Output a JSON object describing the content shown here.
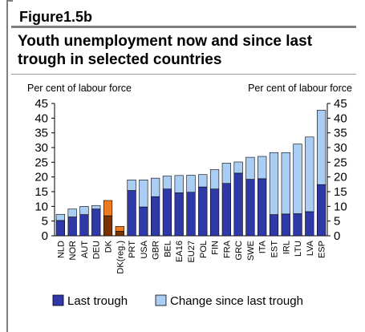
{
  "figure_label": "Figure1.5b",
  "title": "Youth unemployment now and since last trough in selected countries",
  "colors": {
    "last_trough": "#2f3aa8",
    "change": "#aacdf4",
    "highlight_trough": "#7a3200",
    "highlight_change": "#f07a1e",
    "rule": "#7f7f7f"
  },
  "chart_data": {
    "type": "bar",
    "stacked": true,
    "ylabel_left": "Per cent of labour force",
    "ylabel_right": "Per cent of labour force",
    "ylim": [
      0,
      45
    ],
    "yticks": [
      0,
      5,
      10,
      15,
      20,
      25,
      30,
      35,
      40,
      45
    ],
    "grid": false,
    "legend_position": "bottom",
    "categories": [
      "NLD",
      "NOR",
      "AUT",
      "DEU",
      "DK",
      "DK(reg.)",
      "PRT",
      "USA",
      "GBR",
      "BEL",
      "EA16",
      "EU27",
      "POL",
      "FIN",
      "FRA",
      "GRC",
      "SWE",
      "ITA",
      "EST",
      "IRL",
      "LTU",
      "LVA",
      "ESP"
    ],
    "highlighted_categories": [
      "DK",
      "DK(reg.)"
    ],
    "series": [
      {
        "name": "Last trough",
        "values": [
          5.2,
          6.4,
          7.2,
          9.1,
          6.8,
          1.5,
          15.4,
          9.8,
          13.3,
          15.9,
          14.6,
          14.8,
          16.6,
          15.9,
          17.8,
          21.3,
          19.2,
          19.4,
          7.2,
          7.4,
          7.5,
          8.2,
          17.4
        ]
      },
      {
        "name": "Change since last trough",
        "values": [
          2.1,
          2.7,
          2.8,
          1.2,
          5.2,
          1.7,
          3.6,
          9.2,
          6.3,
          4.4,
          5.9,
          5.8,
          4.2,
          6.6,
          6.9,
          3.8,
          7.5,
          7.6,
          21.1,
          20.9,
          23.7,
          25.4,
          25.3
        ]
      }
    ]
  }
}
